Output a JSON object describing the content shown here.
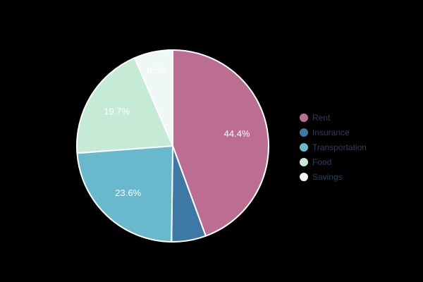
{
  "canvas": {
    "background_color": "#000000"
  },
  "chart_data": {
    "type": "pie",
    "title": "",
    "direction": "clockwise",
    "start_angle_deg": 0,
    "legend_position": "right",
    "slice_outline_color": "#ffffff",
    "inside_label_color": "#ffffff",
    "legend_text_color": "#2a3f5f",
    "slices": [
      {
        "label": "Rent",
        "value": 44.4,
        "display": "44.4%",
        "color": "#bc6e92",
        "label_inside": true
      },
      {
        "label": "Insurance",
        "value": 5.8,
        "display": "5.8%",
        "color": "#3d79a4",
        "label_inside": false
      },
      {
        "label": "Transportation",
        "value": 23.6,
        "display": "23.6%",
        "color": "#68b9cd",
        "label_inside": true
      },
      {
        "label": "Food",
        "value": 19.7,
        "display": "19.7%",
        "color": "#c5ead6",
        "label_inside": true
      },
      {
        "label": "Savings",
        "value": 6.5,
        "display": "6.5%",
        "color": "#eff8f7",
        "label_inside": true
      }
    ]
  }
}
